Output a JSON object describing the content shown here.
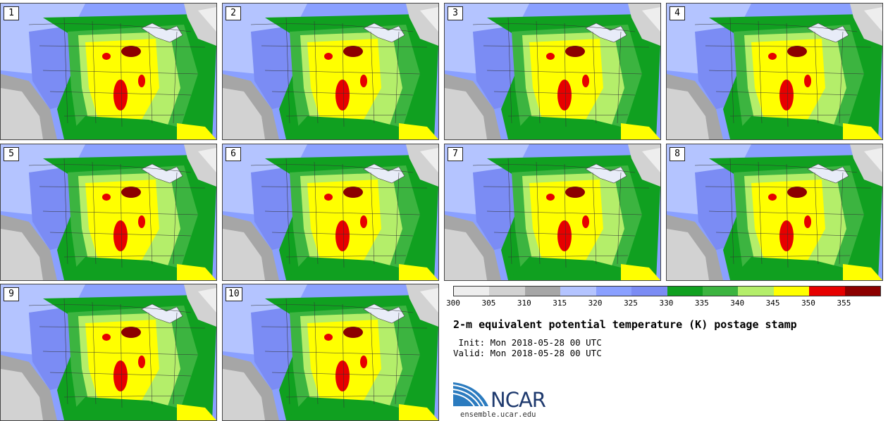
{
  "panels": [
    {
      "label": "1"
    },
    {
      "label": "2"
    },
    {
      "label": "3"
    },
    {
      "label": "4"
    },
    {
      "label": "5"
    },
    {
      "label": "6"
    },
    {
      "label": "7"
    },
    {
      "label": "8"
    },
    {
      "label": "9"
    },
    {
      "label": "10"
    }
  ],
  "colorbar": {
    "colors": [
      "#eeeeee",
      "#d2d2d2",
      "#a6a6a6",
      "#b4c4ff",
      "#8aa0ff",
      "#7b8cf4",
      "#10a020",
      "#3cb440",
      "#b4ee6a",
      "#ffff00",
      "#e60000",
      "#8c0000"
    ],
    "ticks": [
      "300",
      "305",
      "310",
      "315",
      "320",
      "325",
      "330",
      "335",
      "340",
      "345",
      "350",
      "355"
    ]
  },
  "title": "2-m equivalent potential temperature (K) postage stamp",
  "init": " Init: Mon 2018-05-28 00 UTC",
  "valid": "Valid: Mon 2018-05-28 00 UTC",
  "logo": {
    "text": "NCAR",
    "url": "ensemble.ucar.edu"
  }
}
